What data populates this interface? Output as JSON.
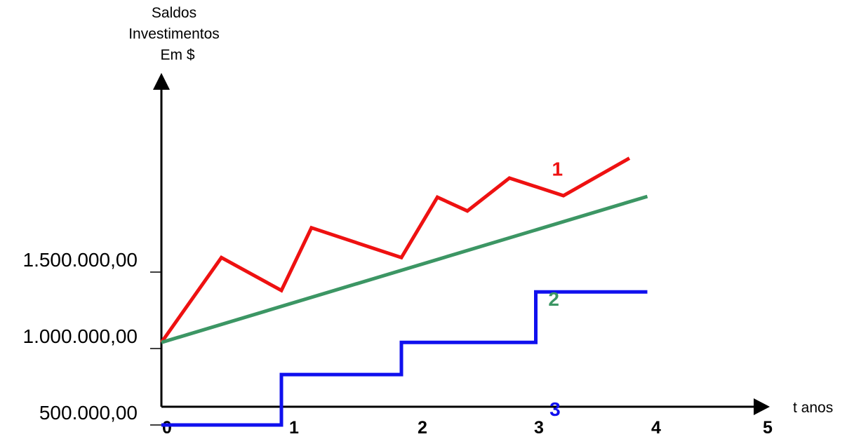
{
  "chart_data": {
    "type": "line",
    "ylabel": [
      "Saldos",
      "Investimentos",
      "Em $"
    ],
    "xlabel": "t anos",
    "x_ticks": [
      "0",
      "1",
      "2",
      "3",
      "4",
      "5"
    ],
    "y_ticks": [
      {
        "value": 500000,
        "label": "500.000,00"
      },
      {
        "value": 1000000,
        "label": "1.000.000,00"
      },
      {
        "value": 1500000,
        "label": "1.500.000,00"
      }
    ],
    "xlim": [
      0,
      5
    ],
    "ylim": [
      0,
      2500000
    ],
    "grid": false,
    "series": [
      {
        "name": "1",
        "color": "#ee1111",
        "style": "line",
        "label_at": {
          "x": 3.3,
          "y": 2130000
        },
        "points": [
          [
            0,
            1040000
          ],
          [
            0.5,
            1595000
          ],
          [
            1.0,
            1380000
          ],
          [
            1.25,
            1790000
          ],
          [
            2.0,
            1595000
          ],
          [
            2.3,
            1990000
          ],
          [
            2.55,
            1900000
          ],
          [
            2.9,
            2115000
          ],
          [
            3.35,
            2000000
          ],
          [
            3.9,
            2245000
          ]
        ]
      },
      {
        "name": "2",
        "color": "#3c9664",
        "style": "line",
        "label_at": {
          "x": 3.27,
          "y": 1280000
        },
        "points": [
          [
            0,
            1040000
          ],
          [
            4.05,
            1995000
          ]
        ]
      },
      {
        "name": "3",
        "color": "#1010ee",
        "style": "step",
        "label_at": {
          "x": 3.28,
          "y": 560000
        },
        "points": [
          [
            0,
            500000
          ],
          [
            1.0,
            500000
          ],
          [
            1.0,
            830000
          ],
          [
            2.0,
            830000
          ],
          [
            2.0,
            1040000
          ],
          [
            3.12,
            1040000
          ],
          [
            3.12,
            1370000
          ],
          [
            4.05,
            1370000
          ]
        ]
      }
    ]
  }
}
